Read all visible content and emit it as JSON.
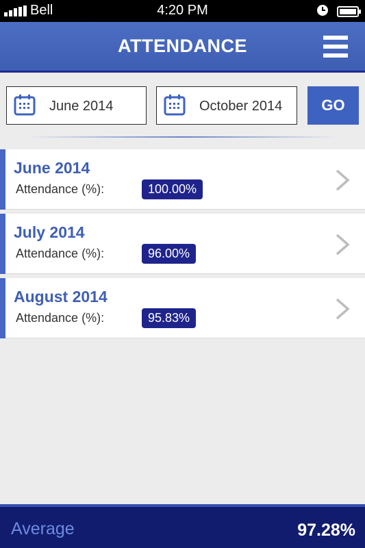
{
  "status_bar": {
    "carrier": "Bell",
    "time": "4:20 PM",
    "icons": [
      "signal-icon",
      "alarm-icon",
      "battery-icon"
    ]
  },
  "header": {
    "title": "ATTENDANCE",
    "menu_icon": "hamburger-menu-icon"
  },
  "filter": {
    "from_date": "June 2014",
    "to_date": "October 2014",
    "go_label": "GO",
    "calendar_icon": "calendar-icon"
  },
  "months": [
    {
      "month": "June 2014",
      "label": "Attendance (%):",
      "value": "100.00%"
    },
    {
      "month": "July 2014",
      "label": "Attendance (%):",
      "value": "96.00%"
    },
    {
      "month": "August 2014",
      "label": "Attendance (%):",
      "value": "95.83%"
    }
  ],
  "footer": {
    "average_label": "Average",
    "average_value": "97.28%"
  },
  "colors": {
    "header": "#4c6ec3",
    "badge": "#1f248c",
    "footer": "#111c6e",
    "accent": "#4767c3"
  }
}
